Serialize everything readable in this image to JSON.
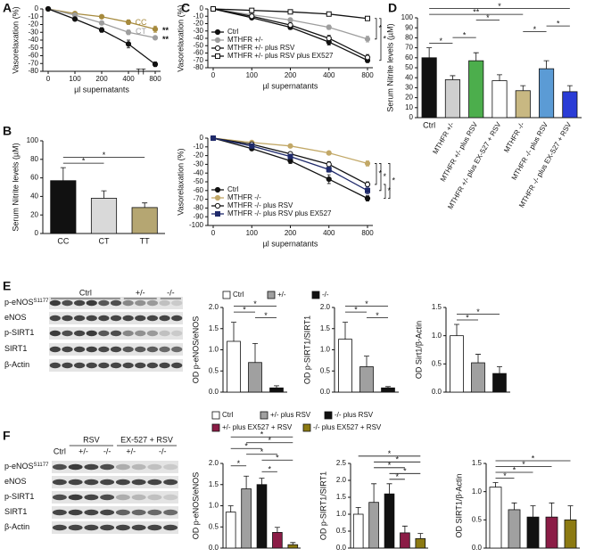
{
  "panel_labels": [
    "A",
    "B",
    "C",
    "D",
    "E",
    "F"
  ],
  "chart_data": [
    {
      "type": "line",
      "categories": [
        "0",
        "100",
        "200",
        "400",
        "800"
      ],
      "xlabel": "µl supernatants",
      "ylabel": "Vasorelaxation (%)",
      "ylim": [
        -80,
        0
      ],
      "yticks": [
        0,
        -10,
        -20,
        -30,
        -40,
        -50,
        -60,
        -70,
        -80
      ],
      "end_labels": true,
      "series": [
        {
          "name": "CC",
          "color": "#a68a3d",
          "marker": "circle",
          "filled": true,
          "values": [
            0,
            -6,
            -10,
            -17,
            -26
          ],
          "errors": [
            0,
            1,
            2,
            3,
            4
          ]
        },
        {
          "name": "CT",
          "color": "#9e9e9e",
          "marker": "circle",
          "filled": true,
          "values": [
            0,
            -8,
            -18,
            -30,
            -37
          ],
          "errors": [
            0,
            1,
            2,
            3,
            2
          ]
        },
        {
          "name": "TT",
          "color": "#111111",
          "marker": "circle",
          "filled": true,
          "values": [
            0,
            -13,
            -27,
            -45,
            -71
          ],
          "errors": [
            0,
            2,
            3,
            5,
            3
          ]
        }
      ],
      "markers": [
        {
          "label": "**",
          "series": "CC"
        },
        {
          "label": "**",
          "series": "CT"
        }
      ]
    },
    {
      "type": "bar",
      "categories": [
        "CC",
        "CT",
        "TT"
      ],
      "values": [
        57,
        38,
        28
      ],
      "errors": [
        14,
        8,
        5
      ],
      "colors": [
        "#111111",
        "#d9d9d9",
        "#b5a672"
      ],
      "ylabel": "Serum Nitrite levels (µM)",
      "ylim": [
        0,
        100
      ],
      "yticks": [
        0,
        20,
        40,
        60,
        80,
        100
      ],
      "significance": [
        {
          "label": "*",
          "from": 0,
          "to": 1
        },
        {
          "label": "*",
          "from": 0,
          "to": 2
        }
      ]
    },
    {
      "type": "line",
      "categories": [
        "0",
        "100",
        "200",
        "400",
        "800"
      ],
      "xlabel": "µl supernatants",
      "ylabel": "Vasorelaxation (%)",
      "ylim": [
        -80,
        0
      ],
      "yticks": [
        0,
        -10,
        -20,
        -30,
        -40,
        -50,
        -60,
        -70,
        -80
      ],
      "legend": "lower left",
      "series": [
        {
          "name": "Ctrl",
          "color": "#111111",
          "marker": "circle",
          "filled": true,
          "values": [
            0,
            -12,
            -25,
            -45,
            -70
          ],
          "errors": [
            0,
            2,
            3,
            4,
            3
          ]
        },
        {
          "name": "MTHFR +/-",
          "color": "#9e9e9e",
          "marker": "circle",
          "filled": true,
          "values": [
            0,
            -8,
            -15,
            -25,
            -41
          ],
          "errors": [
            0,
            1,
            2,
            3,
            4
          ]
        },
        {
          "name": "MTHFR +/- plus RSV",
          "color": "#111111",
          "marker": "circle",
          "filled": false,
          "values": [
            0,
            -10,
            -22,
            -40,
            -66
          ],
          "errors": [
            0,
            2,
            3,
            4,
            4
          ]
        },
        {
          "name": "MTHFR +/- plus RSV plus EX527",
          "color": "#111111",
          "marker": "square",
          "filled": false,
          "values": [
            0,
            -2,
            -4,
            -7,
            -13
          ],
          "errors": [
            0,
            1,
            1,
            1,
            2
          ]
        }
      ],
      "brackets": [
        {
          "label": "*",
          "from": "MTHFR +/- plus RSV plus EX527",
          "to": "MTHFR +/-"
        },
        {
          "label": "*",
          "from": "MTHFR +/- plus RSV plus EX527",
          "to": "Ctrl"
        }
      ]
    },
    {
      "type": "line",
      "categories": [
        "0",
        "100",
        "200",
        "400",
        "800"
      ],
      "xlabel": "µl supernatants",
      "ylabel": "Vasorelaxation (%)",
      "ylim": [
        -100,
        0
      ],
      "yticks": [
        0,
        -10,
        -20,
        -30,
        -40,
        -50,
        -60,
        -70,
        -80,
        -90,
        -100
      ],
      "legend": "lower left",
      "series": [
        {
          "name": "Ctrl",
          "color": "#111111",
          "marker": "circle",
          "filled": true,
          "values": [
            0,
            -12,
            -26,
            -47,
            -69
          ],
          "errors": [
            0,
            2,
            3,
            5,
            3
          ]
        },
        {
          "name": "MTHFR -/-",
          "color": "#c2a867",
          "marker": "circle",
          "filled": true,
          "values": [
            0,
            -5,
            -9,
            -17,
            -29
          ],
          "errors": [
            0,
            1,
            2,
            2,
            3
          ]
        },
        {
          "name": "MTHFR -/- plus RSV",
          "color": "#111111",
          "marker": "circle",
          "filled": false,
          "values": [
            0,
            -7,
            -18,
            -30,
            -53
          ],
          "errors": [
            0,
            1,
            2,
            3,
            3
          ]
        },
        {
          "name": "MTHFR -/- plus RSV plus EX527",
          "color": "#1f2a6b",
          "marker": "square",
          "filled": true,
          "values": [
            0,
            -9,
            -21,
            -36,
            -60
          ],
          "errors": [
            0,
            1,
            2,
            3,
            4
          ]
        }
      ],
      "brackets": [
        {
          "label": "*",
          "from": "MTHFR -/-",
          "to": "MTHFR -/- plus RSV"
        },
        {
          "label": "*",
          "from": "MTHFR -/-",
          "to": "MTHFR -/- plus RSV plus EX527"
        },
        {
          "label": "*",
          "from": "MTHFR -/- plus RSV",
          "to": "Ctrl"
        },
        {
          "label": "*",
          "from": "MTHFR -/-",
          "to": "Ctrl"
        }
      ]
    },
    {
      "type": "bar",
      "categories": [
        "Ctrl",
        "MTHFR +/-",
        "MTHFR +/- plus RSV",
        "MTHFR +/- plus EX-527 + RSV",
        "MTHFR -/-",
        "MTHFR -/- plus RSV",
        "MTHFR -/- plus EX-527 + RSV"
      ],
      "values": [
        60,
        38,
        57,
        37,
        27,
        49,
        26
      ],
      "errors": [
        10,
        4,
        8,
        6,
        5,
        8,
        6
      ],
      "colors": [
        "#111111",
        "#cfcfcf",
        "#4cae4c",
        "#ffffff",
        "#c8b882",
        "#5b9bd5",
        "#2a3cd6"
      ],
      "ylabel": "Serum Nitrite levels (µM)",
      "ylim": [
        0,
        100
      ],
      "yticks": [
        0,
        10,
        20,
        30,
        40,
        50,
        60,
        70,
        80,
        90,
        100
      ],
      "significance": [
        {
          "label": "*",
          "from": 0,
          "to": 1
        },
        {
          "label": "*",
          "from": 1,
          "to": 2
        },
        {
          "label": "*",
          "from": 4,
          "to": 5
        },
        {
          "label": "*",
          "from": 5,
          "to": 6
        },
        {
          "label": "*",
          "from": 2,
          "to": 3
        },
        {
          "label": "**",
          "from": 0,
          "to": 4
        },
        {
          "label": "*",
          "from": 0,
          "to": 6
        }
      ]
    },
    {
      "type": "bar",
      "categories": [
        "Ctrl",
        "+/-",
        "-/-"
      ],
      "legend": "top",
      "xticklabels": false,
      "values": [
        1.2,
        0.7,
        0.1
      ],
      "errors": [
        0.45,
        0.45,
        0.05
      ],
      "colors": [
        "#ffffff",
        "#a0a0a0",
        "#111111"
      ],
      "ylabel": "OD p-eNOS/eNOS",
      "ylim": [
        0,
        2
      ],
      "yticks": [
        {
          "value": 0,
          "label": "0.0"
        },
        0.5,
        {
          "value": 1,
          "label": "1.0"
        },
        1.5,
        {
          "value": 2,
          "label": "2.0"
        }
      ],
      "significance": [
        {
          "label": "*",
          "from": 1,
          "to": 2
        },
        {
          "label": "*",
          "from": 0,
          "to": 1
        },
        {
          "label": "*",
          "from": 0,
          "to": 2
        }
      ]
    },
    {
      "type": "bar",
      "categories": [
        null,
        null,
        null
      ],
      "values": [
        1.25,
        0.6,
        0.1
      ],
      "errors": [
        0.4,
        0.25,
        0.03
      ],
      "colors": [
        "#ffffff",
        "#a0a0a0",
        "#111111"
      ],
      "ylabel": "OD p-SIRT1/SIRT1",
      "ylim": [
        0,
        2
      ],
      "yticks": [
        {
          "value": 0,
          "label": "0.0"
        },
        0.5,
        {
          "value": 1,
          "label": "1.0"
        },
        1.5,
        {
          "value": 2,
          "label": "2.0"
        }
      ],
      "significance": [
        {
          "label": "*",
          "from": 1,
          "to": 2
        },
        {
          "label": "*",
          "from": 0,
          "to": 1
        },
        {
          "label": "*",
          "from": 0,
          "to": 2
        }
      ]
    },
    {
      "type": "bar",
      "categories": [
        null,
        null,
        null
      ],
      "values": [
        1.0,
        0.52,
        0.33
      ],
      "errors": [
        0.2,
        0.15,
        0.12
      ],
      "colors": [
        "#ffffff",
        "#a0a0a0",
        "#111111"
      ],
      "ylabel": "OD Sirt1/β-Actin",
      "ylim": [
        0,
        1.5
      ],
      "yticks": [
        {
          "value": 0,
          "label": "0.0"
        },
        0.5,
        {
          "value": 1,
          "label": "1.0"
        },
        1.5
      ],
      "significance": [
        {
          "label": "*",
          "from": 0,
          "to": 1
        },
        {
          "label": "*",
          "from": 0,
          "to": 2
        }
      ]
    },
    {
      "type": "bar",
      "categories": [
        "Ctrl",
        "+/- plus RSV",
        "-/- plus RSV",
        "+/- plus EX527 + RSV",
        "-/- plus EX527 + RSV"
      ],
      "legend": "top",
      "xticklabels": false,
      "values": [
        0.85,
        1.4,
        1.5,
        0.37,
        0.08
      ],
      "errors": [
        0.15,
        0.3,
        0.15,
        0.12,
        0.05
      ],
      "colors": [
        "#ffffff",
        "#a0a0a0",
        "#111111",
        "#8b1c46",
        "#8c7a12"
      ],
      "ylabel": "OD p-eNOS/eNOS",
      "ylim": [
        0,
        2
      ],
      "yticks": [
        {
          "value": 0,
          "label": "0.0"
        },
        0.5,
        {
          "value": 1,
          "label": "1.0"
        },
        1.5,
        {
          "value": 2,
          "label": "2.0"
        }
      ],
      "significance": [
        {
          "label": "*",
          "from": 2,
          "to": 3
        },
        {
          "label": "*",
          "from": 0,
          "to": 1
        },
        {
          "label": "*",
          "from": 2,
          "to": 4
        },
        {
          "label": "*",
          "from": 1,
          "to": 3
        },
        {
          "label": "*",
          "from": 0,
          "to": 2
        },
        {
          "label": "*",
          "from": 1,
          "to": 4
        },
        {
          "label": "*",
          "from": 0,
          "to": 4
        }
      ]
    },
    {
      "type": "bar",
      "categories": [
        null,
        null,
        null,
        null,
        null
      ],
      "values": [
        1.0,
        1.35,
        1.6,
        0.45,
        0.28
      ],
      "errors": [
        0.2,
        0.55,
        0.3,
        0.2,
        0.15
      ],
      "colors": [
        "#ffffff",
        "#a0a0a0",
        "#111111",
        "#8b1c46",
        "#8c7a12"
      ],
      "ylabel": "OD p-SIRT1/SIRT1",
      "ylim": [
        0,
        2.5
      ],
      "yticks": [
        {
          "value": 0,
          "label": "0.0"
        },
        0.5,
        {
          "value": 1,
          "label": "1.0"
        },
        1.5,
        {
          "value": 2,
          "label": "2.0"
        },
        2.5
      ],
      "significance": [
        {
          "label": "*",
          "from": 2,
          "to": 3
        },
        {
          "label": "*",
          "from": 2,
          "to": 4
        },
        {
          "label": "*",
          "from": 1,
          "to": 3
        },
        {
          "label": "*",
          "from": 1,
          "to": 4
        },
        {
          "label": "*",
          "from": 0,
          "to": 4
        }
      ]
    },
    {
      "type": "bar",
      "categories": [
        null,
        null,
        null,
        null,
        null
      ],
      "values": [
        1.08,
        0.68,
        0.55,
        0.55,
        0.5
      ],
      "errors": [
        0.08,
        0.12,
        0.2,
        0.25,
        0.25
      ],
      "colors": [
        "#ffffff",
        "#a0a0a0",
        "#111111",
        "#8b1c46",
        "#8c7a12"
      ],
      "ylabel": "OD SIRT1/β-Actin",
      "ylim": [
        0,
        1.5
      ],
      "yticks": [
        {
          "value": 0,
          "label": "0.0"
        },
        0.5,
        {
          "value": 1,
          "label": "1.0"
        },
        1.5
      ],
      "significance": [
        {
          "label": "*",
          "from": 0,
          "to": 1
        },
        {
          "label": "*",
          "from": 0,
          "to": 2
        },
        {
          "label": "*",
          "from": 0,
          "to": 3
        },
        {
          "label": "*",
          "from": 0,
          "to": 4
        }
      ]
    }
  ],
  "blots": [
    {
      "groups": [
        "Ctrl",
        "+/-",
        "-/-"
      ],
      "rows": [
        {
          "text": "p-eNOS",
          "sup": "S1177"
        },
        {
          "text": "eNOS"
        },
        {
          "text": "p-SIRT1"
        },
        {
          "text": "SIRT1"
        },
        {
          "text": "β-Actin"
        }
      ]
    },
    {
      "top_groups": [
        "RSV",
        "EX-527 + RSV"
      ],
      "groups": [
        "Ctrl",
        "+/-",
        "-/-",
        "+/-",
        "-/-"
      ],
      "rows": [
        {
          "text": "p-eNOS",
          "sup": "S1177"
        },
        {
          "text": "eNOS"
        },
        {
          "text": "p-SIRT1"
        },
        {
          "text": "SIRT1"
        },
        {
          "text": "β-Actin"
        }
      ]
    }
  ]
}
